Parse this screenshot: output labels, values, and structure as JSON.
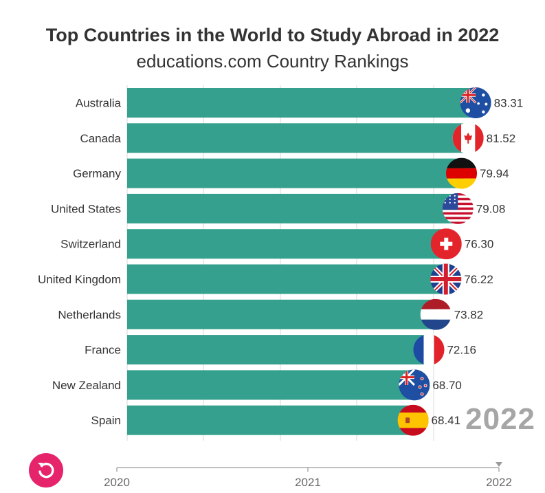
{
  "chart_data": {
    "type": "bar",
    "orientation": "horizontal",
    "title": "Top Countries in the World to Study Abroad in 2022",
    "subtitle": "educations.com Country Rankings",
    "categories": [
      "Australia",
      "Canada",
      "Germany",
      "United States",
      "Switzerland",
      "United Kingdom",
      "Netherlands",
      "France",
      "New Zealand",
      "Spain"
    ],
    "values": [
      83.31,
      81.52,
      79.94,
      79.08,
      76.3,
      76.22,
      73.82,
      72.16,
      68.7,
      68.41
    ],
    "value_labels": [
      "83.31",
      "81.52",
      "79.94",
      "79.08",
      "76.30",
      "76.22",
      "73.82",
      "72.16",
      "68.70",
      "68.41"
    ],
    "flags": [
      "australia-flag",
      "canada-flag",
      "germany-flag",
      "usa-flag",
      "switzerland-flag",
      "uk-flag",
      "netherlands-flag",
      "france-flag",
      "new-zealand-flag",
      "spain-flag"
    ],
    "bar_color": "#35a08d",
    "xlim": [
      0,
      90
    ],
    "grid": true,
    "current_year": "2022"
  },
  "timeline": {
    "ticks": [
      "2020",
      "2021",
      "2022"
    ],
    "current": "2022"
  },
  "controls": {
    "replay_icon": "replay-icon",
    "replay_color": "#e5246b"
  }
}
